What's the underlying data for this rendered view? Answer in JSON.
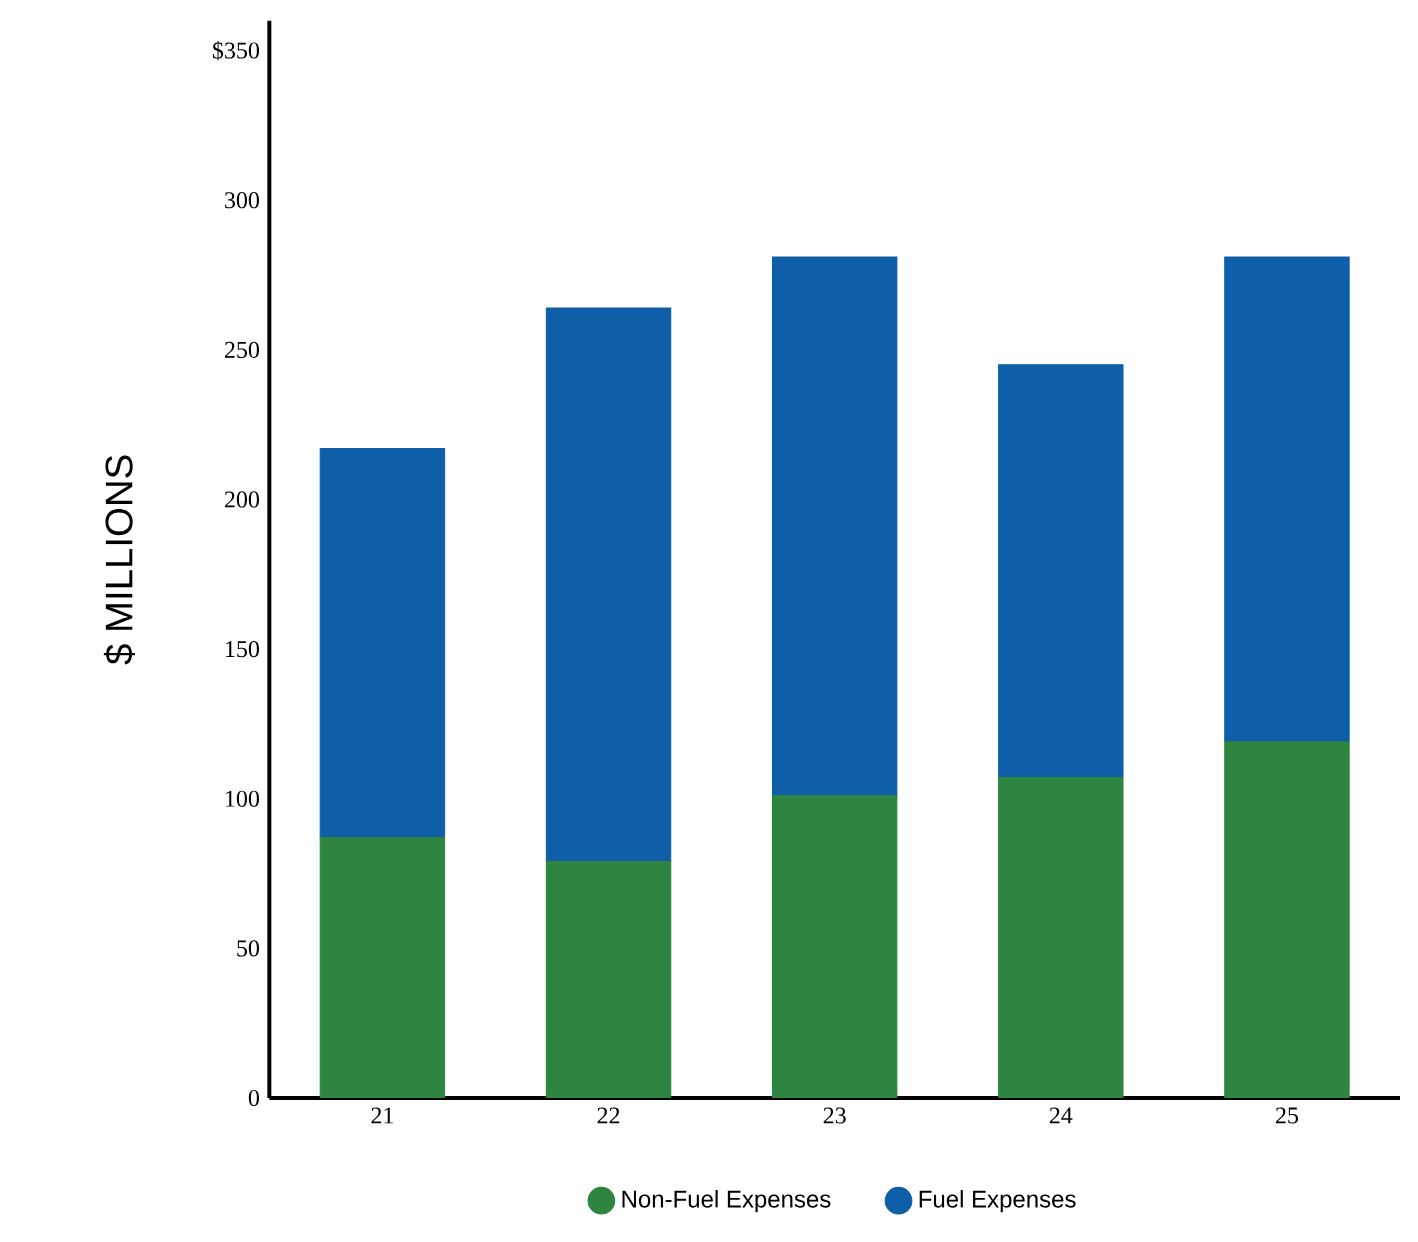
{
  "chart_data": {
    "type": "bar",
    "stacked": true,
    "ylabel": "$ MILLIONS",
    "categories": [
      "21",
      "22",
      "23",
      "24",
      "25"
    ],
    "series": [
      {
        "name": "Non-Fuel Expenses",
        "color": "#2e8540",
        "values": [
          87,
          79,
          101,
          107,
          119
        ]
      },
      {
        "name": "Fuel Expenses",
        "color": "#0f5fa8",
        "values": [
          130,
          185,
          180,
          138,
          162
        ]
      }
    ],
    "ylim": [
      0,
      360
    ],
    "yticks": [
      0,
      50,
      100,
      150,
      200,
      250,
      300,
      {
        "value": 350,
        "label": "$350"
      }
    ],
    "grid": false,
    "legend": "bottom"
  }
}
